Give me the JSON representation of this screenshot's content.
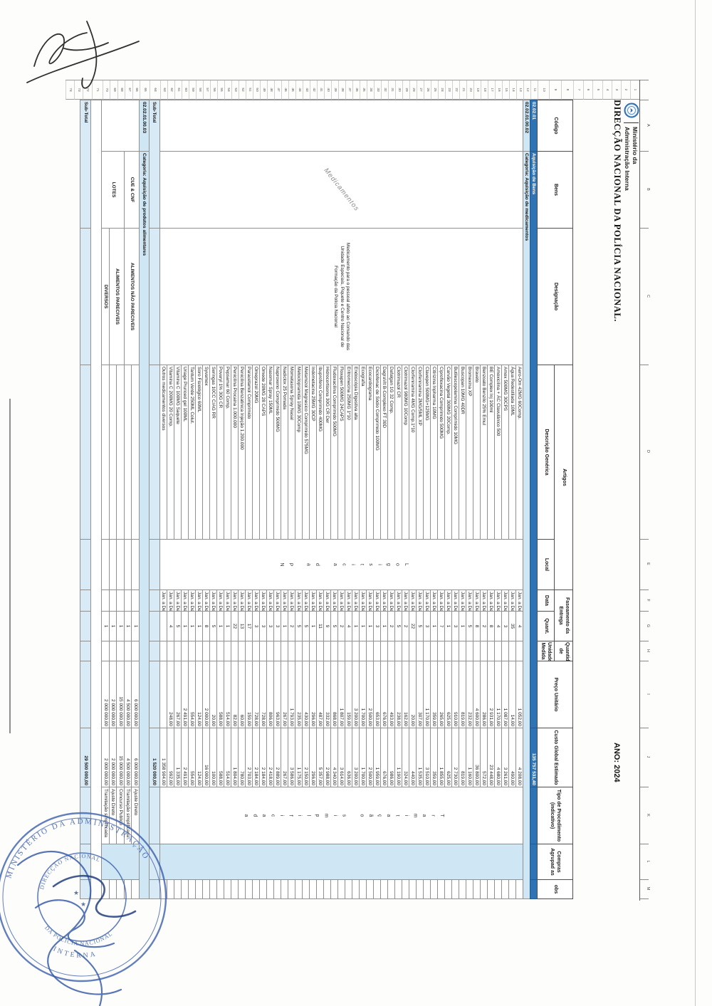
{
  "ministry": {
    "line1": "Ministério da",
    "line2": "Administração Interna"
  },
  "title": "DIRECÇÃO NACIONAL DA POLÍCIA NACIONAL.",
  "year_label": "ANO: 2024",
  "column_letters": [
    "A",
    "B",
    "C",
    "D",
    "E",
    "F",
    "G",
    "H",
    "I",
    "J",
    "K",
    "L",
    "M"
  ],
  "row_numbers_max": 74,
  "headers": {
    "codigo": "Código",
    "bens": "Bens",
    "designacao": "Designação",
    "artigos": "Artigos",
    "descricao_generica": "Descrição Genérica",
    "local": "Local",
    "faseamento": "Faseamento da Entrega",
    "data": "Data",
    "quant": "Quant.",
    "quantida_de": "Quantida de",
    "unidade_medida": "Unidade Medida",
    "preco_unitario": "Preço Unitário",
    "custo_global": "Custo Global Estimado",
    "tipo_procedimento": "Tipo de Procedimento (indicativo)",
    "compras_agrupadas": "Compras Agrupad as",
    "obs": "obs"
  },
  "section_bens": {
    "codigo": "02.02.01",
    "label": "Aquisição de Bens",
    "custo_total": "135 757 531,40"
  },
  "section_medicamentos": {
    "codigo": "02.02.01.00.02",
    "label": "Categoria: Aquisição de medicamentos",
    "bens_watermark": "Medicamentos",
    "designacao_note": "Medicamento para o pessoal afeto ao Comando das Unidade Especiais, Piquete e Centro Nacional de Formação da Polícia Nacional",
    "local_vertical": "Logistica da PN",
    "tipo_vertical": "Tramitação simplificada",
    "data_value": "Jan. a Dez.",
    "subtotal_label": "Sub-Total",
    "subtotal_value": "1 520 000,00",
    "items": [
      {
        "descricao": "Aero-Om 42MG 60Comp.",
        "quant": "4",
        "preco": "1 052,00",
        "custo": "4 208,00"
      },
      {
        "descricao": "Água Redestilada 10ML",
        "quant": "35",
        "preco": "14,00",
        "custo": "490,00"
      },
      {
        "descricao": "Amox 500MG 30CPS",
        "quant": "3",
        "preco": "1 087,00",
        "custo": "3 261,00"
      },
      {
        "descricao": "Amoxicilina + ÁC Clavulânico 500",
        "quant": "4",
        "preco": "1 170,00",
        "custo": "4 680,00"
      },
      {
        "descricao": "BE Complex Inj 100ml",
        "quant": "8",
        "preco": "2 931,00",
        "custo": "23 448,00"
      },
      {
        "descricao": "Benzoato Benzilo 25% Emul",
        "quant": "2",
        "preco": "286,00",
        "custo": "572,00"
      },
      {
        "descricao": "Braveto",
        "quant": "8",
        "preco": "4 600,00",
        "custo": "36 800,00"
      },
      {
        "descricao": "Bromexina XP",
        "quant": "5",
        "preco": "232,00",
        "custo": "1 160,00"
      },
      {
        "descricao": "Buscopan 10MG 40DR",
        "quant": "1",
        "preco": "819,00",
        "custo": "819,00"
      },
      {
        "descricao": "Butilescopolamina Comprimido 10MG",
        "quant": "3",
        "preco": "910,00",
        "custo": "2 730,00"
      },
      {
        "descricao": "Carvão Vegetal 300MG 20Comp.",
        "quant": "1",
        "preco": "625,00",
        "custo": "625,00"
      },
      {
        "descricao": "Ciprofloxacina Comprimido 500MG",
        "quant": "7",
        "preco": "265,00",
        "custo": "1 855,00"
      },
      {
        "descricao": "Citirizina Inpharma 10MG",
        "quant": "1",
        "preco": "359,00",
        "custo": "359,00"
      },
      {
        "descricao": "Clavepen 500MG+125MG",
        "quant": "3",
        "preco": "1 170,00",
        "custo": "3 510,00"
      },
      {
        "descricao": "Clorfeniramina 2MG/5ML XP",
        "quant": "5",
        "preco": "307,00",
        "custo": "1 535,00"
      },
      {
        "descricao": "Clorfeniramina 4MG Comp.1*10",
        "quant": "22",
        "preco": "20,00",
        "custo": "440,00"
      },
      {
        "descricao": "Clotrimazol 980MG 10Comp",
        "quant": "2",
        "preco": "162,00",
        "custo": "324,00"
      },
      {
        "descricao": "Clotrimazol CR",
        "quant": "5",
        "preco": "238,00",
        "custo": "1 190,00"
      },
      {
        "descricao": "Dafalgan 1G 32 Comp.",
        "quant": "2",
        "preco": "493,00",
        "custo": "986,00"
      },
      {
        "descricao": "DagraVit B-Complexo FT 30D",
        "quant": "1",
        "preco": "676,00",
        "custo": "676,00"
      },
      {
        "descricao": "Diclofenac de Sódio Comprimido 100MG",
        "quant": "3",
        "preco": "653,00",
        "custo": "1 959,00"
      },
      {
        "descricao": "Ecocardiograma",
        "quant": "1",
        "preco": "2 500,00",
        "custo": "2 500,00"
      },
      {
        "descricao": "Ecografia",
        "quant": "1",
        "preco": "1 700,00",
        "custo": "1 700,00"
      },
      {
        "descricao": "Endoscópia Digestiva alta",
        "quant": "1",
        "preco": "3 200,00",
        "custo": "3 200,00"
      },
      {
        "descricao": "Eritromecina 250MG 1*10",
        "quant": "4",
        "preco": "159,00",
        "custo": "636,00"
      },
      {
        "descricao": "Floxapen 500MG 24CAPS",
        "quant": "2",
        "preco": "1 807,00",
        "custo": "3 614,00"
      },
      {
        "descricao": "Fludoxacilina Comprimido 500MG",
        "quant": "5",
        "preco": "868,00",
        "custo": "4 340,00"
      },
      {
        "descricao": "Hidrocortisona 30G CR Der",
        "quant": "9",
        "preco": "332,00",
        "custo": "2 988,00"
      },
      {
        "descricao": "Ibuprofeno Comprimido 400MG",
        "quant": "11",
        "preco": "487,00",
        "custo": "5 357,00"
      },
      {
        "descricao": "Indometacina 25MG 30CP",
        "quant": "1",
        "preco": "296,00",
        "custo": "296,00"
      },
      {
        "descricao": "Metamizol Magnesico Comprimido 575MG",
        "quant": "5",
        "preco": "430,00",
        "custo": "2 150,00"
      },
      {
        "descricao": "Metoclopramida 10MG 30Comp",
        "quant": "5",
        "preco": "235,00",
        "custo": "1 175,00"
      },
      {
        "descricao": "Mometasona Spray Nasal",
        "quant": "2",
        "preco": "1 793,00",
        "custo": "3 586,00"
      },
      {
        "descricao": "Nadiclox 25 Pomada",
        "quant": "1",
        "preco": "267,00",
        "custo": "267,00"
      },
      {
        "descricao": "Naproxeno Comprimido 500MG",
        "quant": "3",
        "preco": "963,00",
        "custo": "2 889,00"
      },
      {
        "descricao": "Nasomar Spray 150ML",
        "quant": "3",
        "preco": "806,00",
        "custo": "2 418,00"
      },
      {
        "descricao": "Omede 20MG 28 CAPS",
        "quant": "3",
        "preco": "728,00",
        "custo": "2 184,00"
      },
      {
        "descricao": "Omeprazol 20MG",
        "quant": "3",
        "preco": "728,00",
        "custo": "2 184,00"
      },
      {
        "descricao": "Paracetamol Comprimido",
        "quant": "17",
        "preco": "159,00",
        "custo": "2 703,00"
      },
      {
        "descricao": "Penicilina Benzatinica Injeção 1.200.000",
        "quant": "13",
        "preco": "60,00",
        "custo": "780,00"
      },
      {
        "descricao": "Penicilina Procaina 1.000.000",
        "quant": "22",
        "preco": "82,00",
        "custo": "1 804,00"
      },
      {
        "descricao": "Pepsamar 60 Comp.",
        "quant": "1",
        "preco": "514,00",
        "custo": "514,00"
      },
      {
        "descricao": "Povaryl 1% 30G CR",
        "quant": "1",
        "preco": "588,00",
        "custo": "588,00"
      },
      {
        "descricao": "Seringas 10CC C/AG RR",
        "quant": "5",
        "preco": "20,00",
        "custo": "100,00"
      },
      {
        "descricao": "Syvamox",
        "quant": "8",
        "preco": "2 000,00",
        "custo": "16 000,00"
      },
      {
        "descricao": "Soro Fisiológico 60ML",
        "quant": "1",
        "preco": "124,00",
        "custo": "124,00"
      },
      {
        "descricao": "Tantum Verde 250ML Colut.",
        "quant": "1",
        "preco": "554,00",
        "custo": "554,00"
      },
      {
        "descricao": "Uriage Pruriced gel 100ML",
        "quant": "1",
        "preco": "2 491,00",
        "custo": "2 491,00"
      },
      {
        "descricao": "Vitamina C 100MG Saquete",
        "quant": "5",
        "preco": "267,00",
        "custo": "1 335,00"
      },
      {
        "descricao": "Vitamina C 200MG 20 Comp.",
        "quant": "4",
        "preco": "248,00",
        "custo": "992,00"
      },
      {
        "descricao": "Outros medicamentos diversos",
        "quant": "",
        "preco": "",
        "custo": "1 358 904,00"
      }
    ]
  },
  "section_alimentares": {
    "codigo": "02.02.01.00.03",
    "label": "Categoria: Aquisição de produtos alimentares",
    "subtotal_label": "Sub-Total",
    "subtotal_value": "29 500 000,00",
    "rows": [
      {
        "bens": "CUE & CNF",
        "bens_span": 2,
        "designacao": "ALIMENTOS NÃO PARECIVEIS",
        "desig_span": 2,
        "quant": "1",
        "preco": "6 000 000,00",
        "custo": "6 000 000,00",
        "tipo": "Ajuste Direto"
      },
      {
        "quant": "1",
        "preco": "4 500 000,00",
        "custo": "4 500 000,00",
        "tipo": "Tramitação simplificada"
      },
      {
        "bens": "LOTES",
        "bens_span": 3,
        "designacao": "ALIMENTOS PARECIVEIS",
        "desig_span": 2,
        "quant": "1",
        "preco": "15 000 000,00",
        "custo": "15 000 000,00",
        "tipo": "Concurso Publico"
      },
      {
        "quant": "1",
        "preco": "2 000 000,00",
        "custo": "2 000 000,00",
        "tipo": "Ajuste Direto"
      },
      {
        "designacao": "DIVERSOS",
        "desig_span": 1,
        "quant": "1",
        "preco": "2 000 000,00",
        "custo": "2 000 000,00",
        "tipo": "Tramitação simplificada"
      }
    ]
  },
  "stamp": {
    "ring_top": "MINISTÉRIO DA ADMINISTRAÇÃO",
    "ring_bottom": "INTERNA",
    "inner_top": "DIRECÇÃO NACIONAL",
    "inner_bottom": "DA POLÍCIA NACIONAL"
  },
  "colors": {
    "band_dark": "#2e74b5",
    "band_light": "#cfe7f4",
    "stamp_blue": "#3b5fae"
  }
}
